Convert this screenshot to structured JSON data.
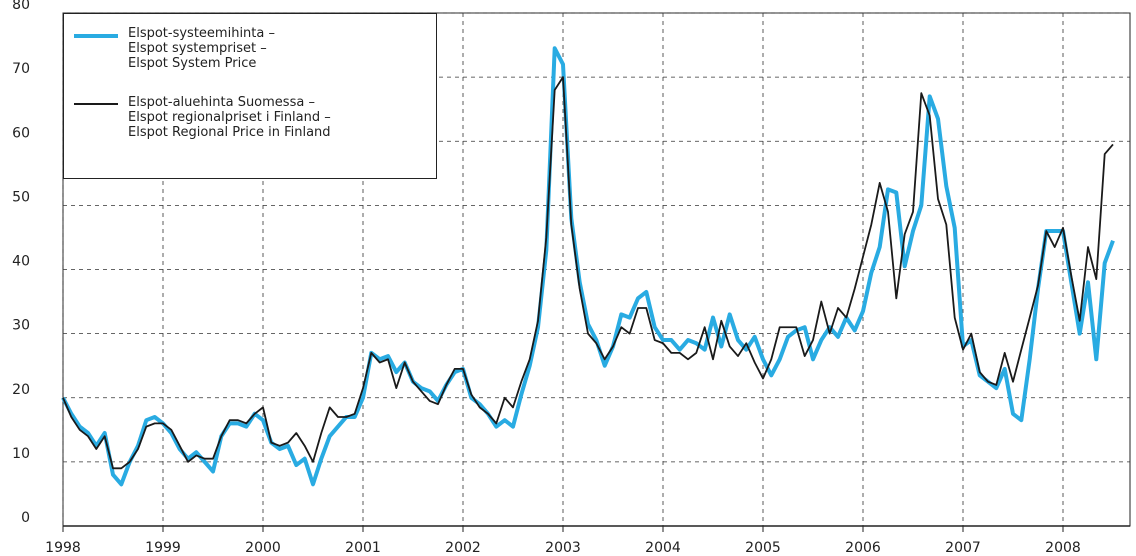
{
  "chart_data": {
    "type": "line",
    "x": [
      1998.0,
      1998.083,
      1998.167,
      1998.25,
      1998.333,
      1998.417,
      1998.5,
      1998.583,
      1998.667,
      1998.75,
      1998.833,
      1998.917,
      1999.0,
      1999.083,
      1999.167,
      1999.25,
      1999.333,
      1999.417,
      1999.5,
      1999.583,
      1999.667,
      1999.75,
      1999.833,
      1999.917,
      2000.0,
      2000.083,
      2000.167,
      2000.25,
      2000.333,
      2000.417,
      2000.5,
      2000.583,
      2000.667,
      2000.75,
      2000.833,
      2000.917,
      2001.0,
      2001.083,
      2001.167,
      2001.25,
      2001.333,
      2001.417,
      2001.5,
      2001.583,
      2001.667,
      2001.75,
      2001.833,
      2001.917,
      2002.0,
      2002.083,
      2002.167,
      2002.25,
      2002.333,
      2002.417,
      2002.5,
      2002.583,
      2002.667,
      2002.75,
      2002.833,
      2002.917,
      2003.0,
      2003.083,
      2003.167,
      2003.25,
      2003.333,
      2003.417,
      2003.5,
      2003.583,
      2003.667,
      2003.75,
      2003.833,
      2003.917,
      2004.0,
      2004.083,
      2004.167,
      2004.25,
      2004.333,
      2004.417,
      2004.5,
      2004.583,
      2004.667,
      2004.75,
      2004.833,
      2004.917,
      2005.0,
      2005.083,
      2005.167,
      2005.25,
      2005.333,
      2005.417,
      2005.5,
      2005.583,
      2005.667,
      2005.75,
      2005.833,
      2005.917,
      2006.0,
      2006.083,
      2006.167,
      2006.25,
      2006.333,
      2006.417,
      2006.5,
      2006.583,
      2006.667,
      2006.75,
      2006.833,
      2006.917,
      2007.0,
      2007.083,
      2007.167,
      2007.25,
      2007.333,
      2007.417,
      2007.5,
      2007.583,
      2007.667,
      2007.75,
      2007.833,
      2007.917,
      2008.0,
      2008.083,
      2008.167,
      2008.25,
      2008.333,
      2008.417,
      2008.5
    ],
    "series": [
      {
        "name": "Elspot-systeemihinta –\nElspot systempriset –\nElspot System Price",
        "color": "#29abe2",
        "values": [
          20,
          17.5,
          15.5,
          14.5,
          12.5,
          14.5,
          8,
          6.5,
          10,
          12.5,
          16.5,
          17,
          16,
          14.5,
          12,
          10.5,
          11.5,
          10,
          8.5,
          14,
          16,
          16,
          15.5,
          17.5,
          16.5,
          13,
          12,
          12.5,
          9.5,
          10.5,
          6.5,
          10.5,
          14,
          15.5,
          17,
          17,
          20,
          27,
          26,
          26.5,
          24,
          25.5,
          22.5,
          21.5,
          21,
          19.5,
          22,
          24,
          24.5,
          20,
          19,
          17.5,
          15.5,
          16.5,
          15.5,
          20.5,
          25,
          31,
          43,
          74.5,
          72,
          48,
          38,
          31.5,
          29,
          25,
          28,
          33,
          32.5,
          35.5,
          36.5,
          31,
          29,
          29,
          27.5,
          29,
          28.5,
          27.5,
          32.5,
          28,
          33,
          29,
          27.5,
          29.5,
          26,
          23.5,
          26,
          29.5,
          30.5,
          31,
          26,
          29,
          31,
          29.5,
          32.5,
          30.5,
          33.5,
          39.5,
          43.5,
          52.5,
          52,
          40.5,
          46,
          50,
          67,
          63.5,
          53,
          46.5,
          28,
          29,
          23.5,
          22.5,
          21.5,
          24.5,
          17.5,
          16.5,
          26,
          37,
          46,
          46,
          46,
          38,
          30,
          38,
          26,
          41,
          44.5
        ]
      },
      {
        "name": "Elspot-aluehinta Suomessa –\nElspot regionalpriset i Finland –\nElspot Regional Price in Finland",
        "color": "#1a1a1a",
        "values": [
          20,
          17,
          15,
          14,
          12,
          14,
          9,
          9,
          10,
          12,
          15.5,
          16,
          16,
          15,
          12.5,
          10,
          11,
          10.5,
          10.5,
          14,
          16.5,
          16.5,
          16,
          17.5,
          18.5,
          13,
          12.5,
          13,
          14.5,
          12.5,
          10,
          14.5,
          18.5,
          17,
          17,
          17.5,
          21.5,
          27,
          25.5,
          26,
          21.5,
          25.5,
          22.5,
          21,
          19.5,
          19,
          22,
          24.5,
          24.5,
          20.5,
          18.5,
          17.5,
          16,
          20,
          18.5,
          22.5,
          26,
          32,
          45,
          68,
          70,
          47,
          37,
          30,
          28.5,
          26,
          28,
          31,
          30,
          34,
          34,
          29,
          28.5,
          27,
          27,
          26,
          27,
          31,
          26,
          32,
          28,
          26.5,
          28.5,
          25.5,
          23,
          26,
          31,
          31,
          31,
          26.5,
          29,
          35,
          30,
          34,
          32.5,
          37,
          42,
          47,
          53.5,
          49,
          35.5,
          45.5,
          49,
          67.5,
          64,
          51,
          47,
          32.5,
          27.5,
          30,
          24,
          22.5,
          22,
          27,
          22.5,
          27.5,
          32.5,
          37.5,
          46,
          43.5,
          46.5,
          39,
          32,
          43.5,
          38.5,
          58,
          59.5
        ]
      }
    ],
    "xlim": [
      1998,
      2008.67
    ],
    "xticks": [
      1998,
      1999,
      2000,
      2001,
      2002,
      2003,
      2004,
      2005,
      2006,
      2007,
      2008
    ],
    "ylim": [
      0,
      80
    ],
    "yticks": [
      0,
      10,
      20,
      30,
      40,
      50,
      60,
      70,
      80
    ],
    "grid": true,
    "legend": "upper left"
  }
}
